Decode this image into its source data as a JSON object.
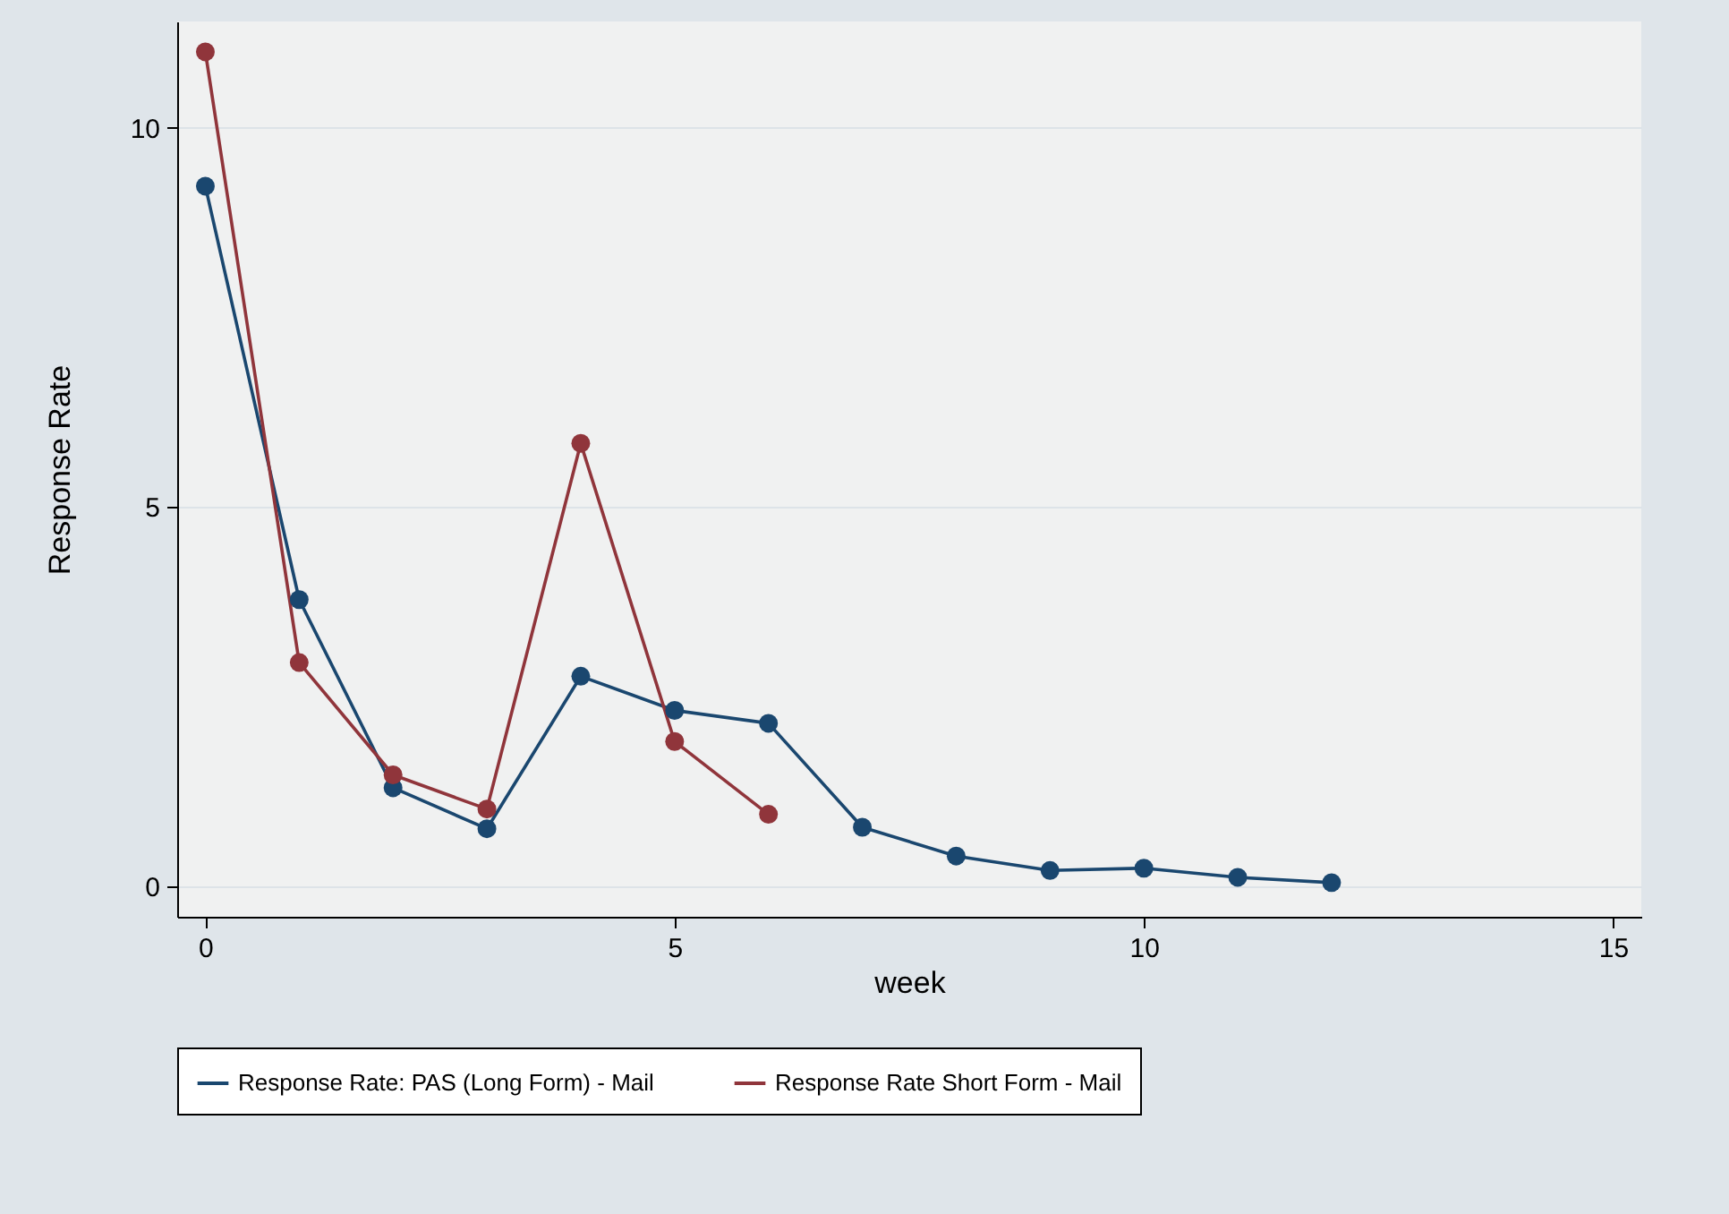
{
  "chart_data": {
    "type": "line",
    "xlabel": "week",
    "ylabel": "Response Rate",
    "xlim": [
      -0.3,
      15.3
    ],
    "xticks": [
      0,
      5,
      10,
      15
    ],
    "ylim": [
      -0.4,
      11.4
    ],
    "yticks": [
      0,
      5,
      10
    ],
    "grid": "y",
    "legend": "bottom",
    "marker": "circle",
    "line_style": "solid",
    "series": [
      {
        "name": "Response Rate: PAS (Long Form) - Mail",
        "color": "#1a476f",
        "x": [
          0,
          1,
          2,
          3,
          4,
          5,
          6,
          7,
          8,
          9,
          10,
          11,
          12
        ],
        "values": [
          9.23,
          3.78,
          1.3,
          0.76,
          2.77,
          2.32,
          2.15,
          0.78,
          0.4,
          0.21,
          0.24,
          0.12,
          0.05
        ]
      },
      {
        "name": "Response Rate Short Form - Mail",
        "color": "#90353b",
        "x": [
          0,
          1,
          2,
          3,
          4,
          5,
          6
        ],
        "values": [
          11.0,
          2.95,
          1.47,
          1.02,
          5.84,
          1.91,
          0.95
        ]
      }
    ]
  }
}
